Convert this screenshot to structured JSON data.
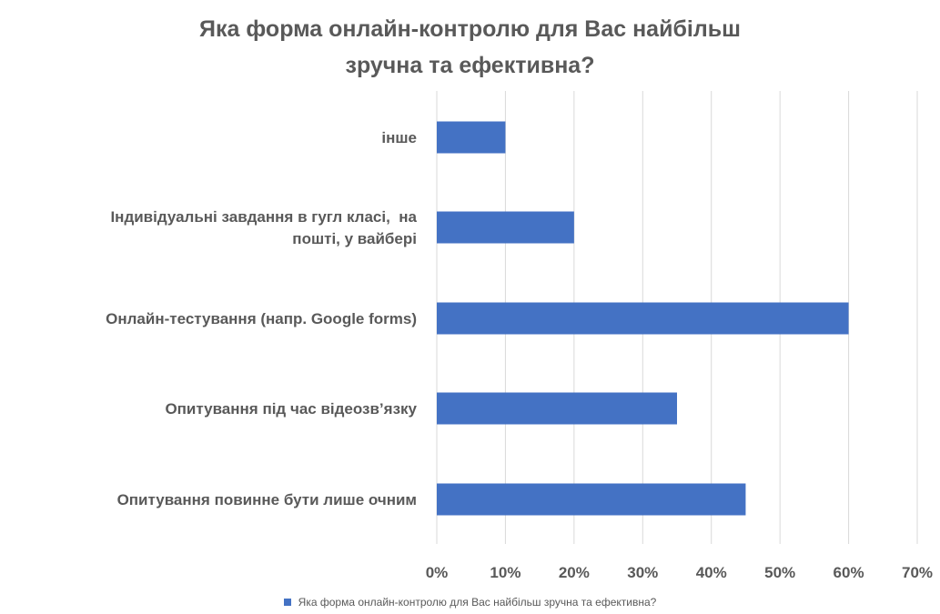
{
  "chart_data": {
    "type": "bar",
    "orientation": "horizontal",
    "title": [
      "Яка форма онлайн-контролю для Вас найбільш",
      "зручна та ефективна?"
    ],
    "categories": [
      [
        "інше"
      ],
      [
        "Індивідуальні завдання в гугл класі,  на",
        "пошті, у вайбері"
      ],
      [
        "Онлайн-тестування (напр. Google forms)"
      ],
      [
        "Опитування під час відеозв’язку"
      ],
      [
        "Опитування повинне бути лише очним"
      ]
    ],
    "series": [
      {
        "name": "Яка форма онлайн-контролю для Вас найбільш зручна та ефективна?",
        "values": [
          0.1,
          0.2,
          0.6,
          0.35,
          0.45
        ]
      }
    ],
    "xlim": [
      0,
      0.7
    ],
    "xticks": [
      "0%",
      "10%",
      "20%",
      "30%",
      "40%",
      "50%",
      "60%",
      "70%"
    ],
    "grid": true,
    "legend_position": "bottom",
    "colors": {
      "bar": "#4472C4",
      "grid": "#d9d9d9",
      "text": "#595959"
    }
  }
}
